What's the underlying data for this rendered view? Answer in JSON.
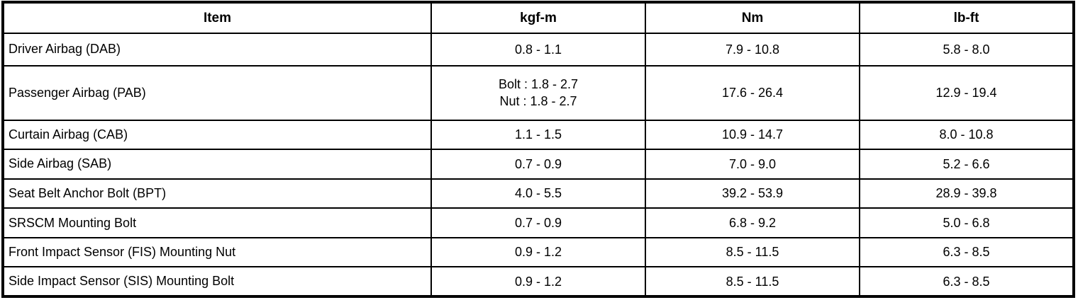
{
  "colors": {
    "border": "#000000",
    "background": "#ffffff",
    "text": "#000000"
  },
  "table": {
    "columns": [
      "Item",
      "kgf-m",
      "Nm",
      "lb-ft"
    ],
    "rows": [
      {
        "item": "Driver Airbag (DAB)",
        "kgf_m": "0.8 - 1.1",
        "nm": "7.9 - 10.8",
        "lb_ft": "5.8 - 8.0"
      },
      {
        "item": "Passenger Airbag (PAB)",
        "kgf_m": "Bolt : 1.8 - 2.7\nNut : 1.8 - 2.7",
        "nm": "17.6 - 26.4",
        "lb_ft": "12.9 - 19.4"
      },
      {
        "item": "Curtain Airbag (CAB)",
        "kgf_m": "1.1 - 1.5",
        "nm": "10.9 - 14.7",
        "lb_ft": "8.0 - 10.8"
      },
      {
        "item": "Side Airbag (SAB)",
        "kgf_m": "0.7 - 0.9",
        "nm": "7.0 - 9.0",
        "lb_ft": "5.2 - 6.6"
      },
      {
        "item": "Seat Belt Anchor Bolt (BPT)",
        "kgf_m": "4.0 - 5.5",
        "nm": "39.2 - 53.9",
        "lb_ft": "28.9 - 39.8"
      },
      {
        "item": "SRSCM Mounting Bolt",
        "kgf_m": "0.7 - 0.9",
        "nm": "6.8 - 9.2",
        "lb_ft": "5.0 - 6.8"
      },
      {
        "item": "Front Impact Sensor (FIS) Mounting Nut",
        "kgf_m": "0.9 - 1.2",
        "nm": "8.5 - 11.5",
        "lb_ft": "6.3 - 8.5"
      },
      {
        "item": "Side Impact Sensor (SIS) Mounting Bolt",
        "kgf_m": "0.9 - 1.2",
        "nm": "8.5 - 11.5",
        "lb_ft": "6.3 - 8.5"
      }
    ]
  }
}
